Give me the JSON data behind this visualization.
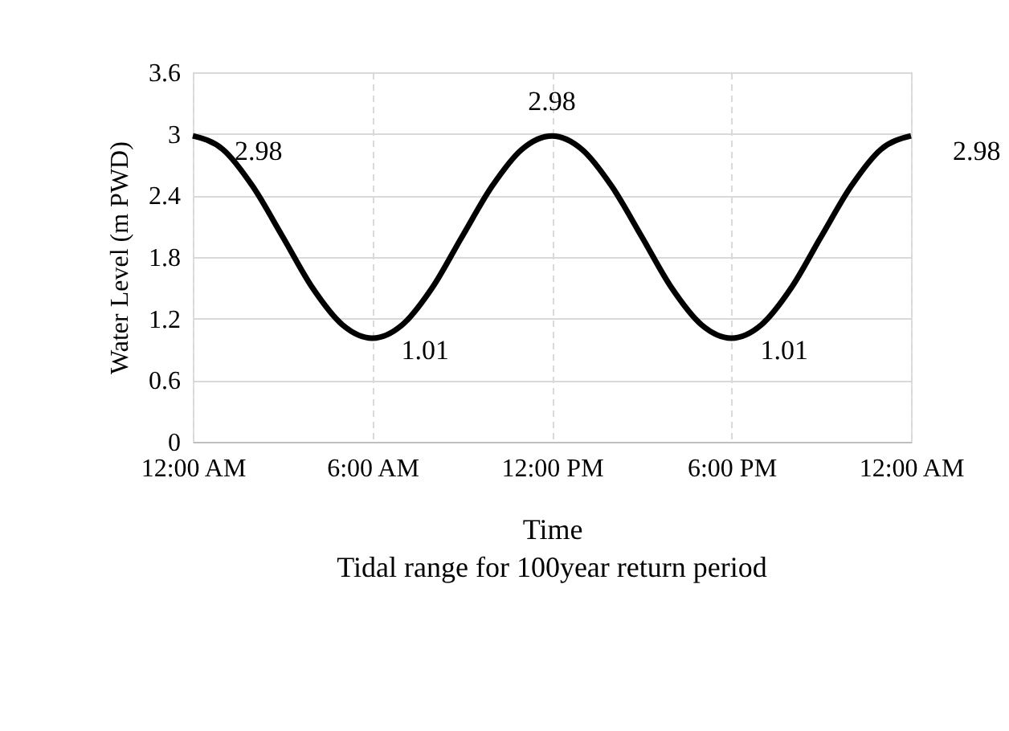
{
  "chart_data": {
    "type": "line",
    "title": "Tidal range for 100year  return period",
    "xlabel": "Time",
    "ylabel": "Water Level (m PWD)",
    "x": [
      0,
      1,
      2,
      3,
      4,
      5,
      6,
      7,
      8,
      9,
      10,
      11,
      12,
      13,
      14,
      15,
      16,
      17,
      18,
      19,
      20,
      21,
      22,
      23,
      24
    ],
    "series": [
      {
        "color": "#000000",
        "values": [
          2.98,
          2.85,
          2.49,
          2.0,
          1.5,
          1.14,
          1.01,
          1.14,
          1.5,
          2.0,
          2.49,
          2.85,
          2.98,
          2.85,
          2.49,
          2.0,
          1.5,
          1.14,
          1.01,
          1.14,
          1.5,
          2.0,
          2.49,
          2.85,
          2.98
        ],
        "value_labels": [
          "2.98",
          null,
          null,
          null,
          null,
          null,
          "1.01",
          null,
          null,
          null,
          null,
          null,
          "2.98",
          null,
          null,
          null,
          null,
          null,
          "1.01",
          null,
          null,
          null,
          null,
          null,
          "2.98"
        ]
      }
    ],
    "xlim": [
      0,
      24
    ],
    "xticks": [
      {
        "value": 0,
        "label": "12:00 AM"
      },
      {
        "value": 6,
        "label": "6:00 AM"
      },
      {
        "value": 12,
        "label": "12:00 PM"
      },
      {
        "value": 18,
        "label": "6:00 PM"
      },
      {
        "value": 24,
        "label": "12:00 AM"
      }
    ],
    "ylim": [
      0,
      3.6
    ],
    "yticks": [
      0,
      0.6,
      1.2,
      1.8,
      2.4,
      3,
      3.6
    ],
    "grid": true,
    "marker": "none",
    "line_style": "solid"
  }
}
